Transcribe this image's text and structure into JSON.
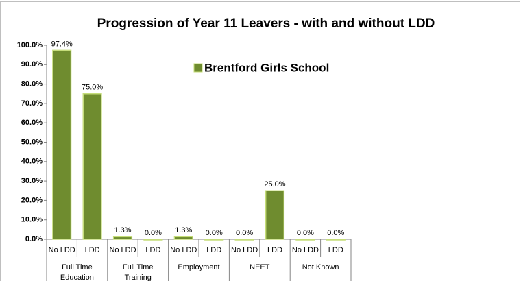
{
  "chart_data": {
    "type": "bar",
    "title": "Progression of Year 11 Leavers  - with and without LDD",
    "categories": [
      "No LDD",
      "LDD",
      "No LDD",
      "LDD",
      "No LDD",
      "LDD",
      "No LDD",
      "LDD",
      "No LDD",
      "LDD"
    ],
    "category_groups": [
      "Full Time Education",
      "Full Time Training",
      "Employment",
      "NEET",
      "Not Known"
    ],
    "series": [
      {
        "name": "Brentford Girls School",
        "color": "#6f8c2f",
        "values": [
          97.4,
          75.0,
          1.3,
          0.0,
          1.3,
          0.0,
          0.0,
          25.0,
          0.0,
          0.0
        ],
        "value_labels": [
          "97.4%",
          "75.0%",
          "1.3%",
          "0.0%",
          "1.3%",
          "0.0%",
          "0.0%",
          "25.0%",
          "0.0%",
          "0.0%"
        ]
      }
    ],
    "ylim": [
      0,
      100
    ],
    "yticks": [
      {
        "value": 0,
        "label": "0.0%"
      },
      {
        "value": 10,
        "label": "10.0%"
      },
      {
        "value": 20,
        "label": "20.0%"
      },
      {
        "value": 30,
        "label": "30.0%"
      },
      {
        "value": 40,
        "label": "40.0%"
      },
      {
        "value": 50,
        "label": "50.0%"
      },
      {
        "value": 60,
        "label": "60.0%"
      },
      {
        "value": 70,
        "label": "70.0%"
      },
      {
        "value": 80,
        "label": "80.0%"
      },
      {
        "value": 90,
        "label": "90.0%"
      },
      {
        "value": 100,
        "label": "100.0%"
      }
    ],
    "grid": false
  }
}
